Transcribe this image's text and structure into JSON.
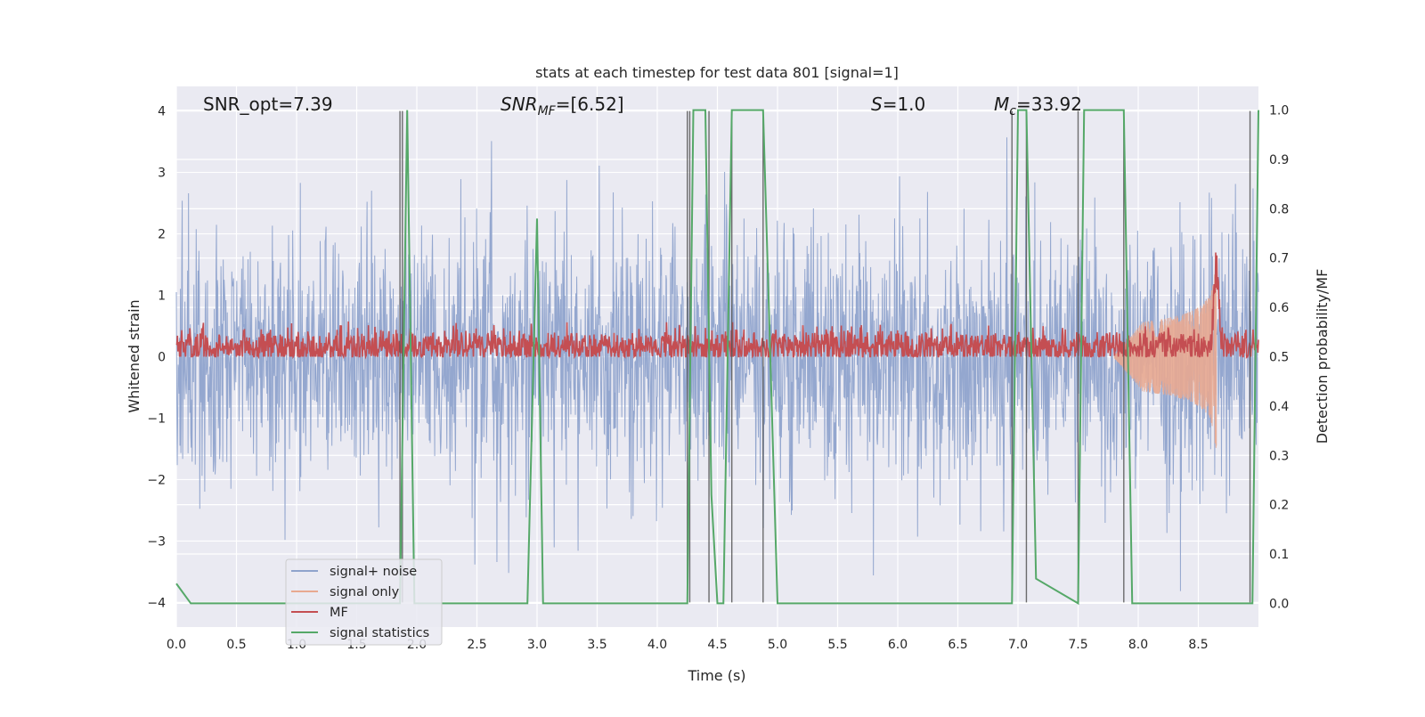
{
  "chart_data": {
    "type": "line",
    "title": "stats at each timestep for test data 801 [signal=1]",
    "xlabel": "Time (s)",
    "ylabel": "Whitened strain",
    "y2label": "Detection probability/MF",
    "xlim": [
      0.0,
      9.0
    ],
    "ylim": [
      -4.4,
      4.4
    ],
    "y2lim": [
      -0.048,
      1.048
    ],
    "x_ticks": [
      "0.0",
      "0.5",
      "1.0",
      "1.5",
      "2.0",
      "2.5",
      "3.0",
      "3.5",
      "4.0",
      "4.5",
      "5.0",
      "5.5",
      "6.0",
      "6.5",
      "7.0",
      "7.5",
      "8.0",
      "8.5"
    ],
    "y_ticks": [
      "−4",
      "−3",
      "−2",
      "−1",
      "0",
      "1",
      "2",
      "3",
      "4"
    ],
    "y2_ticks": [
      "0.0",
      "0.1",
      "0.2",
      "0.3",
      "0.4",
      "0.5",
      "0.6",
      "0.7",
      "0.8",
      "0.9",
      "1.0"
    ],
    "grid": true,
    "legend_position": "lower-left",
    "annotations": {
      "snr_opt": "SNR_opt=7.39",
      "snr_mf_main": "SNR",
      "snr_mf_sub": "MF",
      "snr_mf_value": "=[6.52]",
      "s_main": "S",
      "s_value": "=1.0",
      "mc_main": "M",
      "mc_sub": "c",
      "mc_value": "=33.92"
    },
    "series": [
      {
        "name": "signal+ noise",
        "color": "#8fa3cc",
        "axis": "left",
        "kind": "noise",
        "sigma": 1.0,
        "range": [
          -4.0,
          4.0
        ]
      },
      {
        "name": "signal only",
        "color": "#e8a990",
        "axis": "left",
        "kind": "chirp",
        "start": 7.8,
        "end": 8.65,
        "peak_amplitude": 1.9
      },
      {
        "name": "MF",
        "color": "#c44e52",
        "axis": "right",
        "kind": "mf",
        "baseline": 0.52,
        "peak": 0.71,
        "peak_time": 8.65
      },
      {
        "name": "signal statistics",
        "color": "#55a868",
        "axis": "right",
        "x": [
          0.0,
          0.12,
          0.3,
          0.4,
          1.86,
          1.92,
          1.98,
          2.92,
          3.0,
          3.05,
          4.25,
          4.3,
          4.4,
          4.45,
          4.5,
          4.55,
          4.62,
          4.68,
          4.88,
          5.0,
          6.95,
          7.0,
          7.07,
          7.15,
          7.5,
          7.55,
          7.88,
          7.95,
          8.95,
          9.0
        ],
        "y": [
          0.04,
          0.0,
          0.0,
          0.0,
          0.0,
          1.0,
          0.0,
          0.0,
          0.78,
          0.0,
          0.0,
          1.0,
          1.0,
          0.22,
          0.0,
          0.0,
          1.0,
          1.0,
          1.0,
          0.0,
          0.0,
          1.0,
          1.0,
          0.05,
          0.0,
          1.0,
          1.0,
          0.0,
          0.0,
          1.0
        ]
      }
    ],
    "vlines": [
      1.86,
      1.88,
      4.25,
      4.27,
      4.43,
      4.62,
      4.88,
      6.95,
      7.07,
      7.5,
      7.88,
      8.93
    ]
  }
}
